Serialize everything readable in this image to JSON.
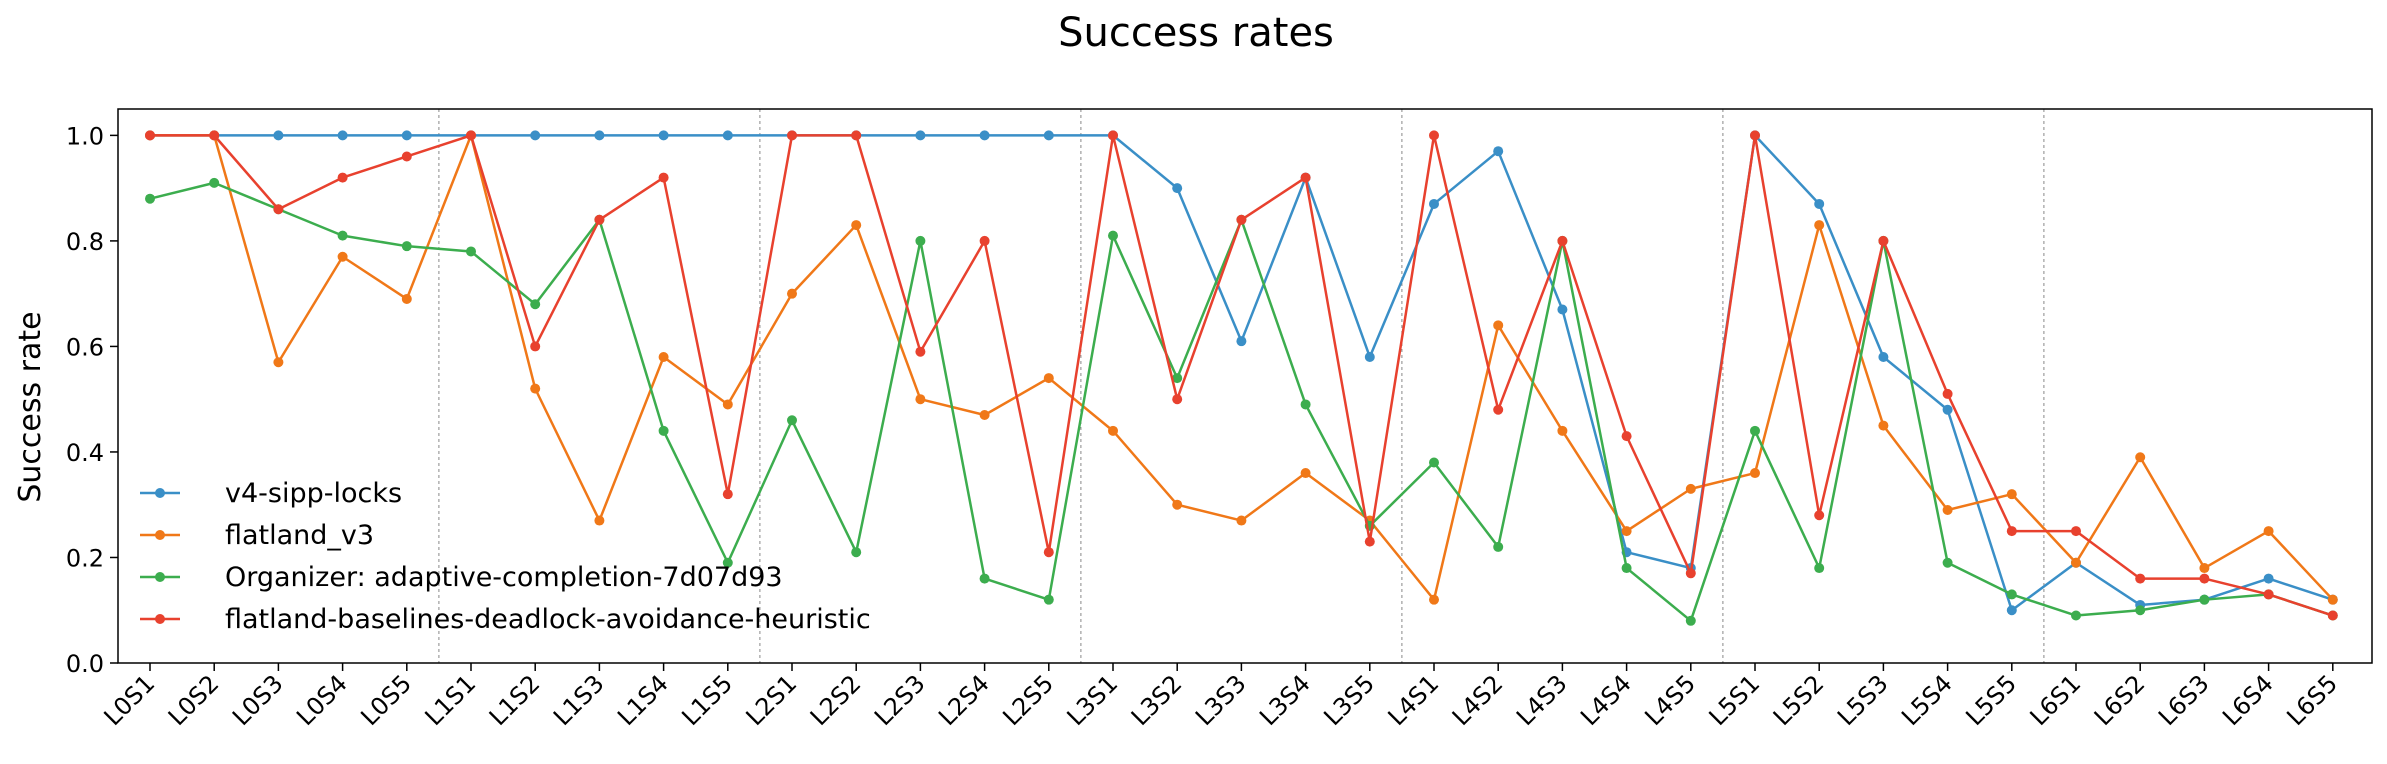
{
  "chart_data": {
    "type": "line",
    "title": "Success rates",
    "xlabel": "",
    "ylabel": "Success rate",
    "ylim": [
      0.0,
      1.05
    ],
    "yticks": [
      "0.0",
      "0.2",
      "0.4",
      "0.6",
      "0.8",
      "1.0"
    ],
    "grid": false,
    "legend_position": "lower-left",
    "group_separators": "dashed vertical lines between levels",
    "categories": [
      "L0S1",
      "L0S2",
      "L0S3",
      "L0S4",
      "L0S5",
      "L1S1",
      "L1S2",
      "L1S3",
      "L1S4",
      "L1S5",
      "L2S1",
      "L2S2",
      "L2S3",
      "L2S4",
      "L2S5",
      "L3S1",
      "L3S2",
      "L3S3",
      "L3S4",
      "L3S5",
      "L4S1",
      "L4S2",
      "L4S3",
      "L4S4",
      "L4S5",
      "L5S1",
      "L5S2",
      "L5S3",
      "L5S4",
      "L5S5",
      "L6S1",
      "L6S2",
      "L6S3",
      "L6S4",
      "L6S5"
    ],
    "series": [
      {
        "name": "v4-sipp-locks",
        "color": "#3a8fc7",
        "values": [
          1.0,
          1.0,
          1.0,
          1.0,
          1.0,
          1.0,
          1.0,
          1.0,
          1.0,
          1.0,
          1.0,
          1.0,
          1.0,
          1.0,
          1.0,
          1.0,
          0.9,
          0.61,
          0.92,
          0.58,
          0.87,
          0.97,
          0.67,
          0.21,
          0.18,
          1.0,
          0.87,
          0.58,
          0.48,
          0.1,
          0.19,
          0.11,
          0.12,
          0.16,
          0.12
        ]
      },
      {
        "name": "flatland_v3",
        "color": "#f07818",
        "values": [
          1.0,
          1.0,
          0.57,
          0.77,
          0.69,
          1.0,
          0.52,
          0.27,
          0.58,
          0.49,
          0.7,
          0.83,
          0.5,
          0.47,
          0.54,
          0.44,
          0.3,
          0.27,
          0.36,
          0.27,
          0.12,
          0.64,
          0.44,
          0.25,
          0.33,
          0.36,
          0.83,
          0.45,
          0.29,
          0.32,
          0.19,
          0.39,
          0.18,
          0.25,
          0.12
        ]
      },
      {
        "name": "Organizer: adaptive-completion-7d07d93",
        "color": "#3cad4e",
        "values": [
          0.88,
          0.91,
          0.86,
          0.81,
          0.79,
          0.78,
          0.68,
          0.84,
          0.44,
          0.19,
          0.46,
          0.21,
          0.8,
          0.16,
          0.12,
          0.81,
          0.54,
          0.84,
          0.49,
          0.26,
          0.38,
          0.22,
          0.8,
          0.18,
          0.08,
          0.44,
          0.18,
          0.8,
          0.19,
          0.13,
          0.09,
          0.1,
          0.12,
          0.13,
          0.09
        ]
      },
      {
        "name": "flatland-baselines-deadlock-avoidance-heuristic",
        "color": "#e8412e",
        "values": [
          1.0,
          1.0,
          0.86,
          0.92,
          0.96,
          1.0,
          0.6,
          0.84,
          0.92,
          0.32,
          1.0,
          1.0,
          0.59,
          0.8,
          0.21,
          1.0,
          0.5,
          0.84,
          0.92,
          0.23,
          1.0,
          0.48,
          0.8,
          0.43,
          0.17,
          1.0,
          0.28,
          0.8,
          0.51,
          0.25,
          0.25,
          0.16,
          0.16,
          0.13,
          0.09
        ]
      }
    ]
  }
}
